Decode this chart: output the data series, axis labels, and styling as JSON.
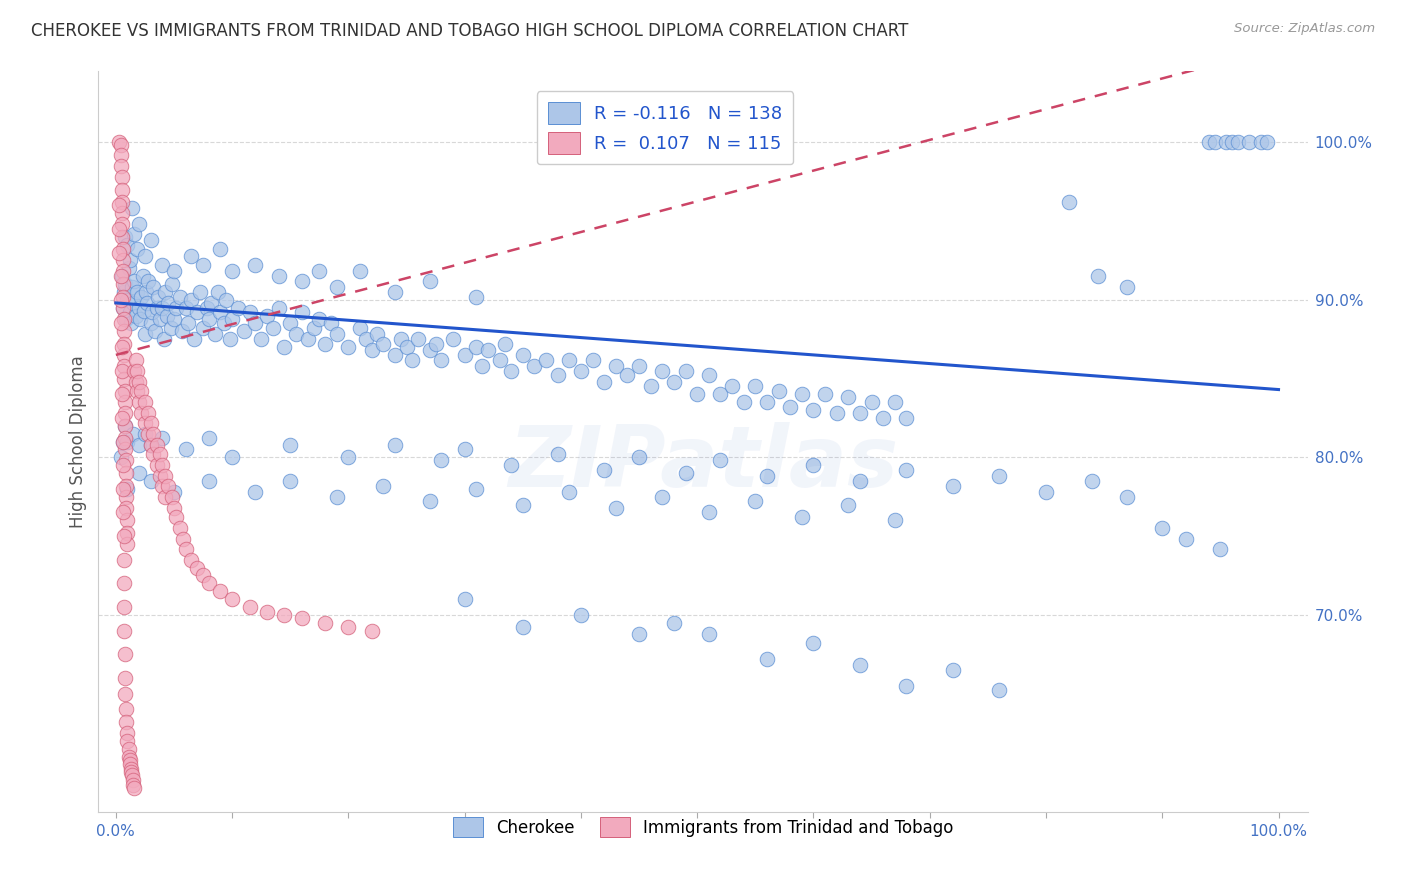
{
  "title": "CHEROKEE VS IMMIGRANTS FROM TRINIDAD AND TOBAGO HIGH SCHOOL DIPLOMA CORRELATION CHART",
  "source": "Source: ZipAtlas.com",
  "ylabel": "High School Diploma",
  "ytick_labels": [
    "70.0%",
    "80.0%",
    "90.0%",
    "100.0%"
  ],
  "ytick_values": [
    0.7,
    0.8,
    0.9,
    1.0
  ],
  "color_blue": "#adc6e8",
  "color_pink": "#f2aabe",
  "color_blue_edge": "#5b8fd4",
  "color_pink_edge": "#d4607a",
  "color_line_blue": "#2255cc",
  "color_line_pink": "#cc4466",
  "watermark": "ZIPatlas",
  "blue_points": [
    [
      0.005,
      0.915
    ],
    [
      0.006,
      0.895
    ],
    [
      0.007,
      0.905
    ],
    [
      0.008,
      0.91
    ],
    [
      0.009,
      0.888
    ],
    [
      0.01,
      0.9
    ],
    [
      0.011,
      0.92
    ],
    [
      0.012,
      0.892
    ],
    [
      0.013,
      0.885
    ],
    [
      0.014,
      0.908
    ],
    [
      0.015,
      0.898
    ],
    [
      0.016,
      0.912
    ],
    [
      0.017,
      0.89
    ],
    [
      0.018,
      0.905
    ],
    [
      0.02,
      0.895
    ],
    [
      0.021,
      0.888
    ],
    [
      0.022,
      0.902
    ],
    [
      0.023,
      0.915
    ],
    [
      0.024,
      0.893
    ],
    [
      0.025,
      0.878
    ],
    [
      0.026,
      0.905
    ],
    [
      0.027,
      0.898
    ],
    [
      0.028,
      0.912
    ],
    [
      0.03,
      0.885
    ],
    [
      0.031,
      0.892
    ],
    [
      0.032,
      0.908
    ],
    [
      0.034,
      0.88
    ],
    [
      0.035,
      0.895
    ],
    [
      0.036,
      0.902
    ],
    [
      0.038,
      0.888
    ],
    [
      0.04,
      0.895
    ],
    [
      0.041,
      0.875
    ],
    [
      0.042,
      0.905
    ],
    [
      0.044,
      0.89
    ],
    [
      0.045,
      0.898
    ],
    [
      0.047,
      0.882
    ],
    [
      0.048,
      0.91
    ],
    [
      0.05,
      0.888
    ],
    [
      0.052,
      0.895
    ],
    [
      0.055,
      0.902
    ],
    [
      0.057,
      0.88
    ],
    [
      0.06,
      0.895
    ],
    [
      0.062,
      0.885
    ],
    [
      0.065,
      0.9
    ],
    [
      0.067,
      0.875
    ],
    [
      0.07,
      0.892
    ],
    [
      0.072,
      0.905
    ],
    [
      0.075,
      0.882
    ],
    [
      0.078,
      0.895
    ],
    [
      0.08,
      0.888
    ],
    [
      0.082,
      0.898
    ],
    [
      0.085,
      0.878
    ],
    [
      0.088,
      0.905
    ],
    [
      0.09,
      0.892
    ],
    [
      0.093,
      0.885
    ],
    [
      0.095,
      0.9
    ],
    [
      0.098,
      0.875
    ],
    [
      0.1,
      0.888
    ],
    [
      0.105,
      0.895
    ],
    [
      0.11,
      0.88
    ],
    [
      0.115,
      0.892
    ],
    [
      0.12,
      0.885
    ],
    [
      0.125,
      0.875
    ],
    [
      0.13,
      0.89
    ],
    [
      0.135,
      0.882
    ],
    [
      0.14,
      0.895
    ],
    [
      0.145,
      0.87
    ],
    [
      0.15,
      0.885
    ],
    [
      0.155,
      0.878
    ],
    [
      0.16,
      0.892
    ],
    [
      0.165,
      0.875
    ],
    [
      0.17,
      0.882
    ],
    [
      0.175,
      0.888
    ],
    [
      0.18,
      0.872
    ],
    [
      0.185,
      0.885
    ],
    [
      0.19,
      0.878
    ],
    [
      0.2,
      0.87
    ],
    [
      0.21,
      0.882
    ],
    [
      0.215,
      0.875
    ],
    [
      0.22,
      0.868
    ],
    [
      0.225,
      0.878
    ],
    [
      0.23,
      0.872
    ],
    [
      0.24,
      0.865
    ],
    [
      0.245,
      0.875
    ],
    [
      0.25,
      0.87
    ],
    [
      0.255,
      0.862
    ],
    [
      0.26,
      0.875
    ],
    [
      0.27,
      0.868
    ],
    [
      0.275,
      0.872
    ],
    [
      0.28,
      0.862
    ],
    [
      0.29,
      0.875
    ],
    [
      0.3,
      0.865
    ],
    [
      0.31,
      0.87
    ],
    [
      0.315,
      0.858
    ],
    [
      0.32,
      0.868
    ],
    [
      0.33,
      0.862
    ],
    [
      0.335,
      0.872
    ],
    [
      0.34,
      0.855
    ],
    [
      0.35,
      0.865
    ],
    [
      0.36,
      0.858
    ],
    [
      0.37,
      0.862
    ],
    [
      0.38,
      0.852
    ],
    [
      0.39,
      0.862
    ],
    [
      0.4,
      0.855
    ],
    [
      0.41,
      0.862
    ],
    [
      0.42,
      0.848
    ],
    [
      0.43,
      0.858
    ],
    [
      0.44,
      0.852
    ],
    [
      0.45,
      0.858
    ],
    [
      0.46,
      0.845
    ],
    [
      0.47,
      0.855
    ],
    [
      0.48,
      0.848
    ],
    [
      0.49,
      0.855
    ],
    [
      0.5,
      0.84
    ],
    [
      0.51,
      0.852
    ],
    [
      0.52,
      0.84
    ],
    [
      0.53,
      0.845
    ],
    [
      0.54,
      0.835
    ],
    [
      0.55,
      0.845
    ],
    [
      0.56,
      0.835
    ],
    [
      0.57,
      0.842
    ],
    [
      0.58,
      0.832
    ],
    [
      0.59,
      0.84
    ],
    [
      0.6,
      0.83
    ],
    [
      0.61,
      0.84
    ],
    [
      0.62,
      0.828
    ],
    [
      0.63,
      0.838
    ],
    [
      0.64,
      0.828
    ],
    [
      0.65,
      0.835
    ],
    [
      0.66,
      0.825
    ],
    [
      0.67,
      0.835
    ],
    [
      0.68,
      0.825
    ],
    [
      0.008,
      0.94
    ],
    [
      0.01,
      0.935
    ],
    [
      0.012,
      0.925
    ],
    [
      0.014,
      0.958
    ],
    [
      0.016,
      0.942
    ],
    [
      0.018,
      0.932
    ],
    [
      0.02,
      0.948
    ],
    [
      0.025,
      0.928
    ],
    [
      0.03,
      0.938
    ],
    [
      0.04,
      0.922
    ],
    [
      0.05,
      0.918
    ],
    [
      0.065,
      0.928
    ],
    [
      0.075,
      0.922
    ],
    [
      0.09,
      0.932
    ],
    [
      0.1,
      0.918
    ],
    [
      0.12,
      0.922
    ],
    [
      0.14,
      0.915
    ],
    [
      0.16,
      0.912
    ],
    [
      0.175,
      0.918
    ],
    [
      0.19,
      0.908
    ],
    [
      0.21,
      0.918
    ],
    [
      0.24,
      0.905
    ],
    [
      0.27,
      0.912
    ],
    [
      0.31,
      0.902
    ],
    [
      0.004,
      0.8
    ],
    [
      0.006,
      0.81
    ],
    [
      0.008,
      0.82
    ],
    [
      0.01,
      0.81
    ],
    [
      0.015,
      0.815
    ],
    [
      0.02,
      0.808
    ],
    [
      0.025,
      0.815
    ],
    [
      0.03,
      0.808
    ],
    [
      0.04,
      0.812
    ],
    [
      0.06,
      0.805
    ],
    [
      0.08,
      0.812
    ],
    [
      0.1,
      0.8
    ],
    [
      0.15,
      0.808
    ],
    [
      0.2,
      0.8
    ],
    [
      0.24,
      0.808
    ],
    [
      0.28,
      0.798
    ],
    [
      0.3,
      0.805
    ],
    [
      0.34,
      0.795
    ],
    [
      0.38,
      0.802
    ],
    [
      0.42,
      0.792
    ],
    [
      0.45,
      0.8
    ],
    [
      0.49,
      0.79
    ],
    [
      0.52,
      0.798
    ],
    [
      0.56,
      0.788
    ],
    [
      0.6,
      0.795
    ],
    [
      0.64,
      0.785
    ],
    [
      0.68,
      0.792
    ],
    [
      0.72,
      0.782
    ],
    [
      0.76,
      0.788
    ],
    [
      0.8,
      0.778
    ],
    [
      0.84,
      0.785
    ],
    [
      0.87,
      0.775
    ],
    [
      0.01,
      0.78
    ],
    [
      0.02,
      0.79
    ],
    [
      0.03,
      0.785
    ],
    [
      0.05,
      0.778
    ],
    [
      0.08,
      0.785
    ],
    [
      0.12,
      0.778
    ],
    [
      0.15,
      0.785
    ],
    [
      0.19,
      0.775
    ],
    [
      0.23,
      0.782
    ],
    [
      0.27,
      0.772
    ],
    [
      0.31,
      0.78
    ],
    [
      0.35,
      0.77
    ],
    [
      0.39,
      0.778
    ],
    [
      0.43,
      0.768
    ],
    [
      0.47,
      0.775
    ],
    [
      0.51,
      0.765
    ],
    [
      0.55,
      0.772
    ],
    [
      0.59,
      0.762
    ],
    [
      0.63,
      0.77
    ],
    [
      0.67,
      0.76
    ],
    [
      0.3,
      0.71
    ],
    [
      0.35,
      0.692
    ],
    [
      0.4,
      0.7
    ],
    [
      0.45,
      0.688
    ],
    [
      0.48,
      0.695
    ],
    [
      0.51,
      0.688
    ],
    [
      0.56,
      0.672
    ],
    [
      0.6,
      0.682
    ],
    [
      0.64,
      0.668
    ],
    [
      0.68,
      0.655
    ],
    [
      0.72,
      0.665
    ],
    [
      0.76,
      0.652
    ],
    [
      0.94,
      1.0
    ],
    [
      0.945,
      1.0
    ],
    [
      0.955,
      1.0
    ],
    [
      0.96,
      1.0
    ],
    [
      0.965,
      1.0
    ],
    [
      0.975,
      1.0
    ],
    [
      0.985,
      1.0
    ],
    [
      0.99,
      1.0
    ],
    [
      0.82,
      0.962
    ],
    [
      0.845,
      0.915
    ],
    [
      0.87,
      0.908
    ],
    [
      0.9,
      0.755
    ],
    [
      0.92,
      0.748
    ],
    [
      0.95,
      0.742
    ]
  ],
  "pink_points": [
    [
      0.003,
      1.0
    ],
    [
      0.004,
      0.998
    ],
    [
      0.004,
      0.992
    ],
    [
      0.004,
      0.985
    ],
    [
      0.005,
      0.978
    ],
    [
      0.005,
      0.97
    ],
    [
      0.005,
      0.962
    ],
    [
      0.005,
      0.955
    ],
    [
      0.005,
      0.948
    ],
    [
      0.005,
      0.94
    ],
    [
      0.006,
      0.932
    ],
    [
      0.006,
      0.925
    ],
    [
      0.006,
      0.918
    ],
    [
      0.006,
      0.91
    ],
    [
      0.006,
      0.902
    ],
    [
      0.006,
      0.895
    ],
    [
      0.007,
      0.888
    ],
    [
      0.007,
      0.88
    ],
    [
      0.007,
      0.872
    ],
    [
      0.007,
      0.865
    ],
    [
      0.007,
      0.858
    ],
    [
      0.007,
      0.85
    ],
    [
      0.008,
      0.842
    ],
    [
      0.008,
      0.835
    ],
    [
      0.008,
      0.828
    ],
    [
      0.008,
      0.82
    ],
    [
      0.008,
      0.812
    ],
    [
      0.008,
      0.805
    ],
    [
      0.009,
      0.798
    ],
    [
      0.009,
      0.79
    ],
    [
      0.009,
      0.782
    ],
    [
      0.009,
      0.775
    ],
    [
      0.009,
      0.768
    ],
    [
      0.01,
      0.76
    ],
    [
      0.01,
      0.752
    ],
    [
      0.01,
      0.745
    ],
    [
      0.003,
      0.96
    ],
    [
      0.003,
      0.945
    ],
    [
      0.003,
      0.93
    ],
    [
      0.004,
      0.915
    ],
    [
      0.004,
      0.9
    ],
    [
      0.004,
      0.885
    ],
    [
      0.005,
      0.87
    ],
    [
      0.005,
      0.855
    ],
    [
      0.005,
      0.84
    ],
    [
      0.005,
      0.825
    ],
    [
      0.006,
      0.81
    ],
    [
      0.006,
      0.795
    ],
    [
      0.006,
      0.78
    ],
    [
      0.006,
      0.765
    ],
    [
      0.007,
      0.75
    ],
    [
      0.007,
      0.735
    ],
    [
      0.007,
      0.72
    ],
    [
      0.007,
      0.705
    ],
    [
      0.007,
      0.69
    ],
    [
      0.008,
      0.675
    ],
    [
      0.008,
      0.66
    ],
    [
      0.008,
      0.65
    ],
    [
      0.009,
      0.64
    ],
    [
      0.009,
      0.632
    ],
    [
      0.01,
      0.625
    ],
    [
      0.01,
      0.62
    ],
    [
      0.011,
      0.615
    ],
    [
      0.011,
      0.61
    ],
    [
      0.012,
      0.608
    ],
    [
      0.012,
      0.605
    ],
    [
      0.013,
      0.602
    ],
    [
      0.013,
      0.6
    ],
    [
      0.014,
      0.598
    ],
    [
      0.015,
      0.595
    ],
    [
      0.015,
      0.592
    ],
    [
      0.016,
      0.59
    ],
    [
      0.016,
      0.855
    ],
    [
      0.017,
      0.862
    ],
    [
      0.017,
      0.848
    ],
    [
      0.018,
      0.855
    ],
    [
      0.018,
      0.842
    ],
    [
      0.02,
      0.848
    ],
    [
      0.02,
      0.835
    ],
    [
      0.022,
      0.842
    ],
    [
      0.022,
      0.828
    ],
    [
      0.025,
      0.835
    ],
    [
      0.025,
      0.822
    ],
    [
      0.028,
      0.828
    ],
    [
      0.028,
      0.815
    ],
    [
      0.03,
      0.822
    ],
    [
      0.03,
      0.808
    ],
    [
      0.032,
      0.815
    ],
    [
      0.032,
      0.802
    ],
    [
      0.035,
      0.808
    ],
    [
      0.035,
      0.795
    ],
    [
      0.038,
      0.802
    ],
    [
      0.038,
      0.788
    ],
    [
      0.04,
      0.795
    ],
    [
      0.04,
      0.782
    ],
    [
      0.042,
      0.788
    ],
    [
      0.042,
      0.775
    ],
    [
      0.045,
      0.782
    ],
    [
      0.048,
      0.775
    ],
    [
      0.05,
      0.768
    ],
    [
      0.052,
      0.762
    ],
    [
      0.055,
      0.755
    ],
    [
      0.058,
      0.748
    ],
    [
      0.06,
      0.742
    ],
    [
      0.065,
      0.735
    ],
    [
      0.07,
      0.73
    ],
    [
      0.075,
      0.725
    ],
    [
      0.08,
      0.72
    ],
    [
      0.09,
      0.715
    ],
    [
      0.1,
      0.71
    ],
    [
      0.115,
      0.705
    ],
    [
      0.13,
      0.702
    ],
    [
      0.145,
      0.7
    ],
    [
      0.16,
      0.698
    ],
    [
      0.18,
      0.695
    ],
    [
      0.2,
      0.692
    ],
    [
      0.22,
      0.69
    ]
  ]
}
